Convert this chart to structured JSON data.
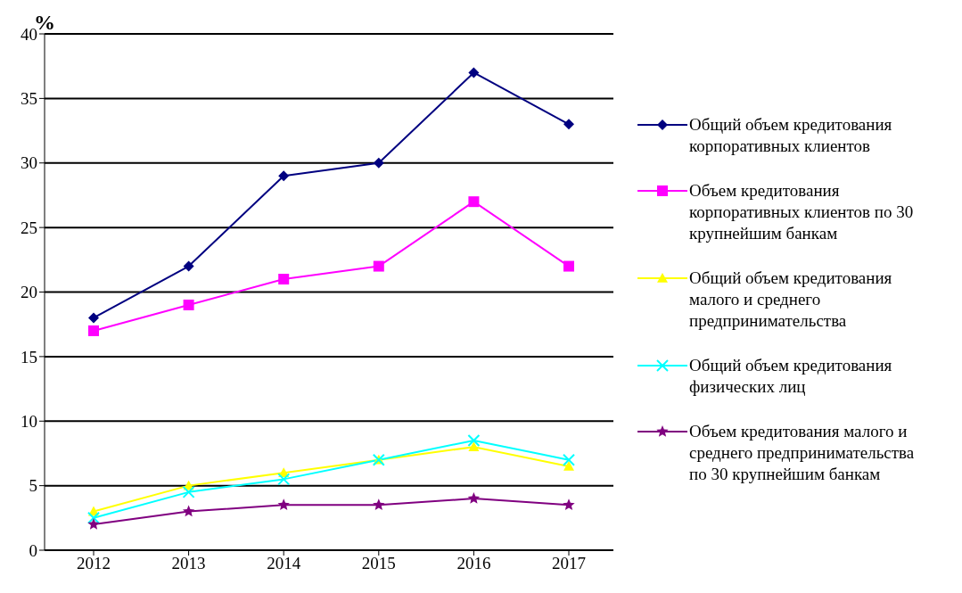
{
  "chart_data": {
    "type": "line",
    "ylabel": "%",
    "categories": [
      "2012",
      "2013",
      "2014",
      "2015",
      "2016",
      "2017"
    ],
    "ylim": [
      0,
      40
    ],
    "yticks": [
      0,
      5,
      10,
      15,
      20,
      25,
      30,
      35,
      40
    ],
    "grid": "y",
    "legend": "right",
    "series": [
      {
        "name": "Общий объем кредитования корпоративных клиентов",
        "color": "#000080",
        "marker": "diamond",
        "values": [
          18,
          22,
          29,
          30,
          37,
          33
        ]
      },
      {
        "name": "Объем кредитования корпоративных клиентов по 30 крупнейшим банкам",
        "color": "#ff00ff",
        "marker": "square",
        "values": [
          17,
          19,
          21,
          22,
          27,
          22
        ]
      },
      {
        "name": "Общий объем кредитования малого и среднего предпринимательства",
        "color": "#ffff00",
        "marker": "triangle",
        "values": [
          3,
          5,
          6,
          7,
          8,
          6.5
        ]
      },
      {
        "name": "Общий объем кредитования физических лиц",
        "color": "#00ffff",
        "marker": "cross",
        "values": [
          2.5,
          4.5,
          5.5,
          7,
          8.5,
          7
        ]
      },
      {
        "name": "Объем кредитования малого и среднего предпринимательства по 30 крупнейшим банкам",
        "color": "#800080",
        "marker": "star",
        "values": [
          2,
          3,
          3.5,
          3.5,
          4,
          3.5
        ]
      }
    ]
  }
}
